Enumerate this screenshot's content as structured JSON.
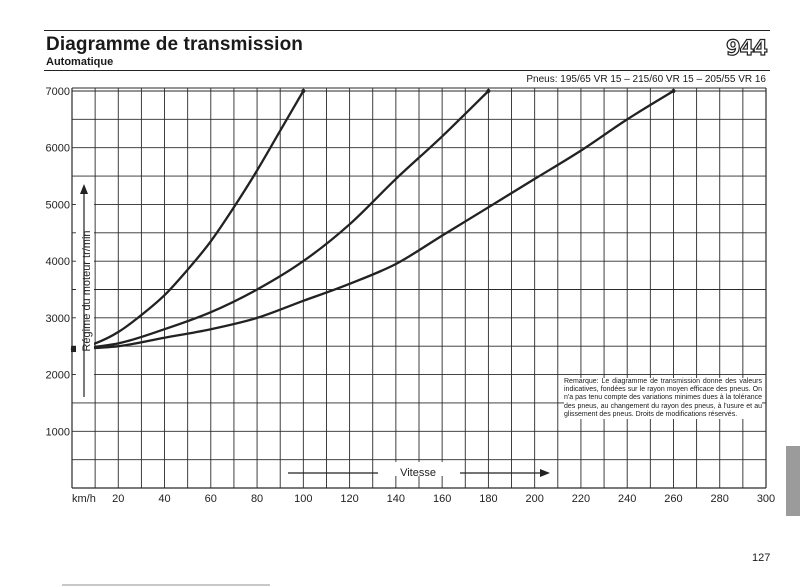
{
  "header": {
    "title": "Diagramme de transmission",
    "subtitle": "Automatique",
    "model": "944",
    "tires": "Pneus: 195/65 VR 15 – 215/60 VR 15 – 205/55 VR 16"
  },
  "note": "Remarque: Le diagramme de transmission donne des valeurs indicatives, fondées sur le rayon moyen efficace des pneus. On n'a pas tenu compte des variations minimes dues à la tolérance des pneus, au changement du rayon des pneus, à l'usure et au glissement des pneus. Droits de modifications réservés.",
  "footer": {
    "page_number": "127"
  },
  "chart_data": {
    "type": "line",
    "title": "Diagramme de transmission",
    "xlabel": "Vitesse",
    "ylabel": "Régime du moteur tr/min",
    "x_unit_label": "km/h",
    "xlim": [
      0,
      300
    ],
    "ylim": [
      0,
      7000
    ],
    "grid": true,
    "x_ticks": [
      20,
      40,
      60,
      80,
      100,
      120,
      140,
      160,
      180,
      200,
      220,
      240,
      260,
      280,
      300
    ],
    "y_ticks": [
      1000,
      2000,
      3000,
      4000,
      5000,
      6000,
      7000
    ],
    "series": [
      {
        "x": [
          0,
          10,
          20,
          30,
          40,
          50,
          60,
          70,
          80,
          90,
          100
        ],
        "y": [
          2450,
          2550,
          2750,
          3050,
          3400,
          3850,
          4350,
          4950,
          5600,
          6300,
          7000
        ]
      },
      {
        "x": [
          0,
          20,
          40,
          60,
          80,
          100,
          120,
          140,
          160,
          180
        ],
        "y": [
          2450,
          2550,
          2800,
          3100,
          3500,
          4000,
          4650,
          5450,
          6200,
          7000
        ]
      },
      {
        "x": [
          0,
          20,
          40,
          60,
          80,
          100,
          120,
          140,
          160,
          180,
          200,
          220,
          240,
          260
        ],
        "y": [
          2450,
          2500,
          2650,
          2800,
          3000,
          3300,
          3600,
          3950,
          4450,
          4950,
          5450,
          5950,
          6500,
          7000
        ]
      }
    ]
  },
  "colors": {
    "ink": "#222222",
    "grid": "#2a2a2a"
  }
}
